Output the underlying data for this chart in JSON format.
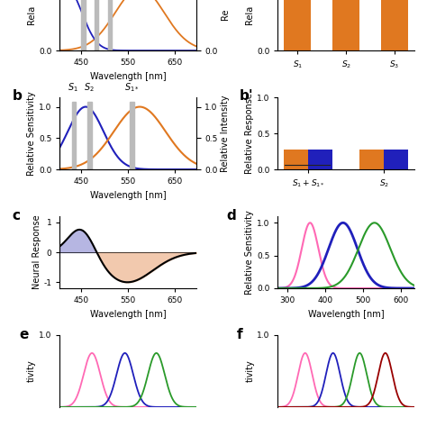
{
  "orange_color": "#E07820",
  "blue_color": "#2020BB",
  "green_color": "#2A9A2A",
  "pink_color": "#FF69B4",
  "dark_red_color": "#990000",
  "gray_color": "#AAAAAA",
  "gray_bar_color": "#BBBBBB",
  "bg_color": "#FFFFFF",
  "label_fontsize": 7,
  "tick_fontsize": 6.5,
  "panel_label_fontsize": 11,
  "bar_orange": "#E07820",
  "bar_blue": "#2020BB",
  "panel_b_prime_s1s1star_orange": 0.28,
  "panel_b_prime_s1s1star_orange_small": 0.06,
  "panel_b_prime_s1s1star_blue": 0.28,
  "panel_b_prime_s2_orange": 0.28,
  "panel_b_prime_s2_blue": 0.28,
  "panel_a_prime_bar_height": 0.85,
  "blue_fill_color": "#AAAADD",
  "orange_fill_color": "#F0C0A0"
}
